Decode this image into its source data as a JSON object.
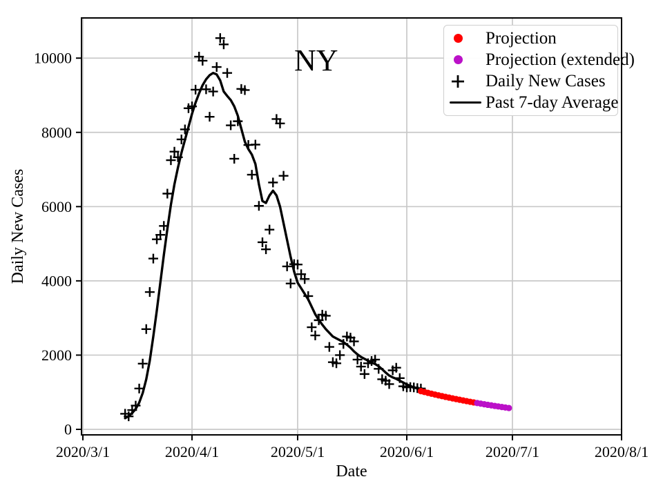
{
  "colors": {
    "projection": "#ff0000",
    "projection_extended": "#bb11c8",
    "data_black": "#000000",
    "grid": "#c8c8c8",
    "frame": "#000000",
    "legend_border": "#cfcfcf"
  },
  "chart_data": {
    "type": "scatter",
    "title": "NY",
    "xlabel": "Date",
    "ylabel": "Daily New Cases",
    "grid": true,
    "legend_position": "upper right",
    "x_axis_start_date": "2020-03-01",
    "x_tick_labels": [
      "2020/3/1",
      "2020/4/1",
      "2020/5/1",
      "2020/6/1",
      "2020/7/1",
      "2020/8/1"
    ],
    "x_tick_day_offsets": [
      0,
      31,
      61,
      92,
      122,
      153
    ],
    "y_tick_labels": [
      "0",
      "2000",
      "4000",
      "6000",
      "8000",
      "10000"
    ],
    "y_tick_values": [
      0,
      2000,
      4000,
      6000,
      8000,
      10000
    ],
    "ylim": [
      -150,
      11080
    ],
    "legend": [
      {
        "label": "Projection",
        "marker": "dot",
        "color": "#ff0000"
      },
      {
        "label": "Projection (extended)",
        "marker": "dot",
        "color": "#bb11c8"
      },
      {
        "label": "Daily New Cases",
        "marker": "plus",
        "color": "#000000"
      },
      {
        "label": "Past 7-day Average",
        "marker": "line",
        "color": "#000000"
      }
    ],
    "series": [
      {
        "name": "Daily New Cases",
        "render": "plus",
        "color": "#000000",
        "points": [
          [
            "2020-03-13",
            420
          ],
          [
            "2020-03-14",
            350
          ],
          [
            "2020-03-15",
            520
          ],
          [
            "2020-03-16",
            640
          ],
          [
            "2020-03-17",
            1100
          ],
          [
            "2020-03-18",
            1770
          ],
          [
            "2020-03-19",
            2700
          ],
          [
            "2020-03-20",
            3700
          ],
          [
            "2020-03-21",
            4600
          ],
          [
            "2020-03-22",
            5120
          ],
          [
            "2020-03-23",
            5240
          ],
          [
            "2020-03-24",
            5480
          ],
          [
            "2020-03-25",
            6350
          ],
          [
            "2020-03-26",
            7250
          ],
          [
            "2020-03-27",
            7480
          ],
          [
            "2020-03-28",
            7330
          ],
          [
            "2020-03-29",
            7810
          ],
          [
            "2020-03-30",
            8080
          ],
          [
            "2020-03-31",
            8650
          ],
          [
            "2020-04-01",
            8700
          ],
          [
            "2020-04-02",
            9150
          ],
          [
            "2020-04-03",
            10040
          ],
          [
            "2020-04-04",
            9930
          ],
          [
            "2020-04-05",
            9160
          ],
          [
            "2020-04-06",
            8420
          ],
          [
            "2020-04-07",
            9100
          ],
          [
            "2020-04-08",
            9760
          ],
          [
            "2020-04-09",
            10540
          ],
          [
            "2020-04-10",
            10370
          ],
          [
            "2020-04-11",
            9600
          ],
          [
            "2020-04-12",
            8190
          ],
          [
            "2020-04-13",
            7290
          ],
          [
            "2020-04-14",
            8300
          ],
          [
            "2020-04-15",
            9170
          ],
          [
            "2020-04-16",
            9140
          ],
          [
            "2020-04-17",
            7660
          ],
          [
            "2020-04-18",
            6860
          ],
          [
            "2020-04-19",
            7670
          ],
          [
            "2020-04-20",
            6020
          ],
          [
            "2020-04-21",
            5040
          ],
          [
            "2020-04-22",
            4850
          ],
          [
            "2020-04-23",
            5380
          ],
          [
            "2020-04-24",
            6650
          ],
          [
            "2020-04-25",
            8360
          ],
          [
            "2020-04-26",
            8240
          ],
          [
            "2020-04-27",
            6830
          ],
          [
            "2020-04-28",
            4390
          ],
          [
            "2020-04-29",
            3930
          ],
          [
            "2020-04-30",
            4450
          ],
          [
            "2020-05-01",
            4440
          ],
          [
            "2020-05-02",
            4180
          ],
          [
            "2020-05-03",
            4050
          ],
          [
            "2020-05-04",
            3590
          ],
          [
            "2020-05-05",
            2750
          ],
          [
            "2020-05-06",
            2530
          ],
          [
            "2020-05-07",
            2940
          ],
          [
            "2020-05-08",
            3090
          ],
          [
            "2020-05-09",
            3060
          ],
          [
            "2020-05-10",
            2220
          ],
          [
            "2020-05-11",
            1810
          ],
          [
            "2020-05-12",
            1780
          ],
          [
            "2020-05-13",
            2000
          ],
          [
            "2020-05-14",
            2300
          ],
          [
            "2020-05-15",
            2500
          ],
          [
            "2020-05-16",
            2470
          ],
          [
            "2020-05-17",
            2370
          ],
          [
            "2020-05-18",
            1880
          ],
          [
            "2020-05-19",
            1690
          ],
          [
            "2020-05-20",
            1490
          ],
          [
            "2020-05-21",
            1780
          ],
          [
            "2020-05-22",
            1840
          ],
          [
            "2020-05-23",
            1880
          ],
          [
            "2020-05-24",
            1630
          ],
          [
            "2020-05-25",
            1350
          ],
          [
            "2020-05-26",
            1310
          ],
          [
            "2020-05-27",
            1220
          ],
          [
            "2020-05-28",
            1590
          ],
          [
            "2020-05-29",
            1660
          ],
          [
            "2020-05-30",
            1380
          ],
          [
            "2020-05-31",
            1160
          ],
          [
            "2020-06-01",
            1130
          ],
          [
            "2020-06-02",
            1140
          ],
          [
            "2020-06-03",
            1130
          ],
          [
            "2020-06-04",
            1110
          ],
          [
            "2020-06-05",
            1100
          ]
        ]
      },
      {
        "name": "Past 7-day Average",
        "render": "line",
        "color": "#000000",
        "points": [
          [
            "2020-03-13",
            300
          ],
          [
            "2020-03-14",
            360
          ],
          [
            "2020-03-15",
            440
          ],
          [
            "2020-03-16",
            550
          ],
          [
            "2020-03-17",
            720
          ],
          [
            "2020-03-18",
            980
          ],
          [
            "2020-03-19",
            1350
          ],
          [
            "2020-03-20",
            1850
          ],
          [
            "2020-03-21",
            2500
          ],
          [
            "2020-03-22",
            3200
          ],
          [
            "2020-03-23",
            3950
          ],
          [
            "2020-03-24",
            4700
          ],
          [
            "2020-03-25",
            5400
          ],
          [
            "2020-03-26",
            6050
          ],
          [
            "2020-03-27",
            6600
          ],
          [
            "2020-03-28",
            7050
          ],
          [
            "2020-03-29",
            7450
          ],
          [
            "2020-03-30",
            7800
          ],
          [
            "2020-03-31",
            8150
          ],
          [
            "2020-04-01",
            8500
          ],
          [
            "2020-04-02",
            8800
          ],
          [
            "2020-04-03",
            9050
          ],
          [
            "2020-04-04",
            9270
          ],
          [
            "2020-04-05",
            9430
          ],
          [
            "2020-04-06",
            9540
          ],
          [
            "2020-04-07",
            9600
          ],
          [
            "2020-04-08",
            9560
          ],
          [
            "2020-04-09",
            9400
          ],
          [
            "2020-04-10",
            9100
          ],
          [
            "2020-04-11",
            8980
          ],
          [
            "2020-04-12",
            8870
          ],
          [
            "2020-04-13",
            8700
          ],
          [
            "2020-04-14",
            8450
          ],
          [
            "2020-04-15",
            8100
          ],
          [
            "2020-04-16",
            7750
          ],
          [
            "2020-04-17",
            7550
          ],
          [
            "2020-04-18",
            7400
          ],
          [
            "2020-04-19",
            7150
          ],
          [
            "2020-04-20",
            6600
          ],
          [
            "2020-04-21",
            6150
          ],
          [
            "2020-04-22",
            6100
          ],
          [
            "2020-04-23",
            6300
          ],
          [
            "2020-04-24",
            6430
          ],
          [
            "2020-04-25",
            6300
          ],
          [
            "2020-04-26",
            6000
          ],
          [
            "2020-04-27",
            5550
          ],
          [
            "2020-04-28",
            5100
          ],
          [
            "2020-04-29",
            4650
          ],
          [
            "2020-04-30",
            4250
          ],
          [
            "2020-05-01",
            3950
          ],
          [
            "2020-05-02",
            3800
          ],
          [
            "2020-05-03",
            3650
          ],
          [
            "2020-05-04",
            3500
          ],
          [
            "2020-05-05",
            3300
          ],
          [
            "2020-05-06",
            3100
          ],
          [
            "2020-05-07",
            2950
          ],
          [
            "2020-05-08",
            2820
          ],
          [
            "2020-05-09",
            2700
          ],
          [
            "2020-05-10",
            2600
          ],
          [
            "2020-05-11",
            2500
          ],
          [
            "2020-05-12",
            2450
          ],
          [
            "2020-05-13",
            2400
          ],
          [
            "2020-05-14",
            2350
          ],
          [
            "2020-05-15",
            2280
          ],
          [
            "2020-05-16",
            2200
          ],
          [
            "2020-05-17",
            2100
          ],
          [
            "2020-05-18",
            2020
          ],
          [
            "2020-05-19",
            1950
          ],
          [
            "2020-05-20",
            1900
          ],
          [
            "2020-05-21",
            1850
          ],
          [
            "2020-05-22",
            1800
          ],
          [
            "2020-05-23",
            1760
          ],
          [
            "2020-05-24",
            1700
          ],
          [
            "2020-05-25",
            1620
          ],
          [
            "2020-05-26",
            1530
          ],
          [
            "2020-05-27",
            1450
          ],
          [
            "2020-05-28",
            1400
          ],
          [
            "2020-05-29",
            1360
          ],
          [
            "2020-05-30",
            1310
          ],
          [
            "2020-05-31",
            1260
          ],
          [
            "2020-06-01",
            1210
          ],
          [
            "2020-06-02",
            1170
          ],
          [
            "2020-06-03",
            1130
          ],
          [
            "2020-06-04",
            1100
          ],
          [
            "2020-06-05",
            1075
          ]
        ]
      },
      {
        "name": "Projection",
        "render": "dots",
        "color": "#ff0000",
        "points": [
          [
            "2020-06-05",
            1030
          ],
          [
            "2020-06-06",
            1006
          ],
          [
            "2020-06-07",
            983
          ],
          [
            "2020-06-08",
            960
          ],
          [
            "2020-06-09",
            938
          ],
          [
            "2020-06-10",
            916
          ],
          [
            "2020-06-11",
            895
          ],
          [
            "2020-06-12",
            875
          ],
          [
            "2020-06-13",
            855
          ],
          [
            "2020-06-14",
            835
          ],
          [
            "2020-06-15",
            816
          ],
          [
            "2020-06-16",
            797
          ],
          [
            "2020-06-17",
            779
          ],
          [
            "2020-06-18",
            761
          ],
          [
            "2020-06-19",
            743
          ],
          [
            "2020-06-20",
            726
          ]
        ]
      },
      {
        "name": "Projection (extended)",
        "render": "dots",
        "color": "#bb11c8",
        "points": [
          [
            "2020-06-21",
            709
          ],
          [
            "2020-06-22",
            693
          ],
          [
            "2020-06-23",
            677
          ],
          [
            "2020-06-24",
            661
          ],
          [
            "2020-06-25",
            646
          ],
          [
            "2020-06-26",
            631
          ],
          [
            "2020-06-27",
            617
          ],
          [
            "2020-06-28",
            602
          ],
          [
            "2020-06-29",
            588
          ],
          [
            "2020-06-30",
            575
          ]
        ]
      }
    ]
  }
}
